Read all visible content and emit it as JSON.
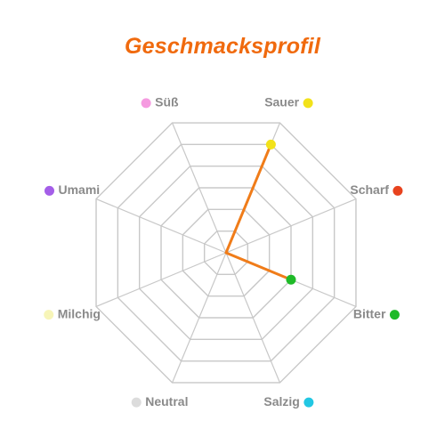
{
  "chart_data": {
    "type": "radar",
    "title": "Geschmacksprofil",
    "title_color": "#f06a0e",
    "axes": [
      {
        "label": "Sauer",
        "color": "#f2e21a"
      },
      {
        "label": "Scharf",
        "color": "#e8431e"
      },
      {
        "label": "Bitter",
        "color": "#1fba28"
      },
      {
        "label": "Salzig",
        "color": "#22c7e3"
      },
      {
        "label": "Neutral",
        "color": "#dcdcdc"
      },
      {
        "label": "Milchig",
        "color": "#f7f5b8"
      },
      {
        "label": "Umami",
        "color": "#a45ee8"
      },
      {
        "label": "Süß",
        "color": "#f59ae0"
      }
    ],
    "values": [
      5,
      0,
      3,
      0,
      0,
      0,
      0,
      0
    ],
    "max": 6,
    "grid_levels": 6,
    "series_color": "#f07c19",
    "series_fill": "#f9c69a",
    "grid_color": "#c8c8c8"
  }
}
